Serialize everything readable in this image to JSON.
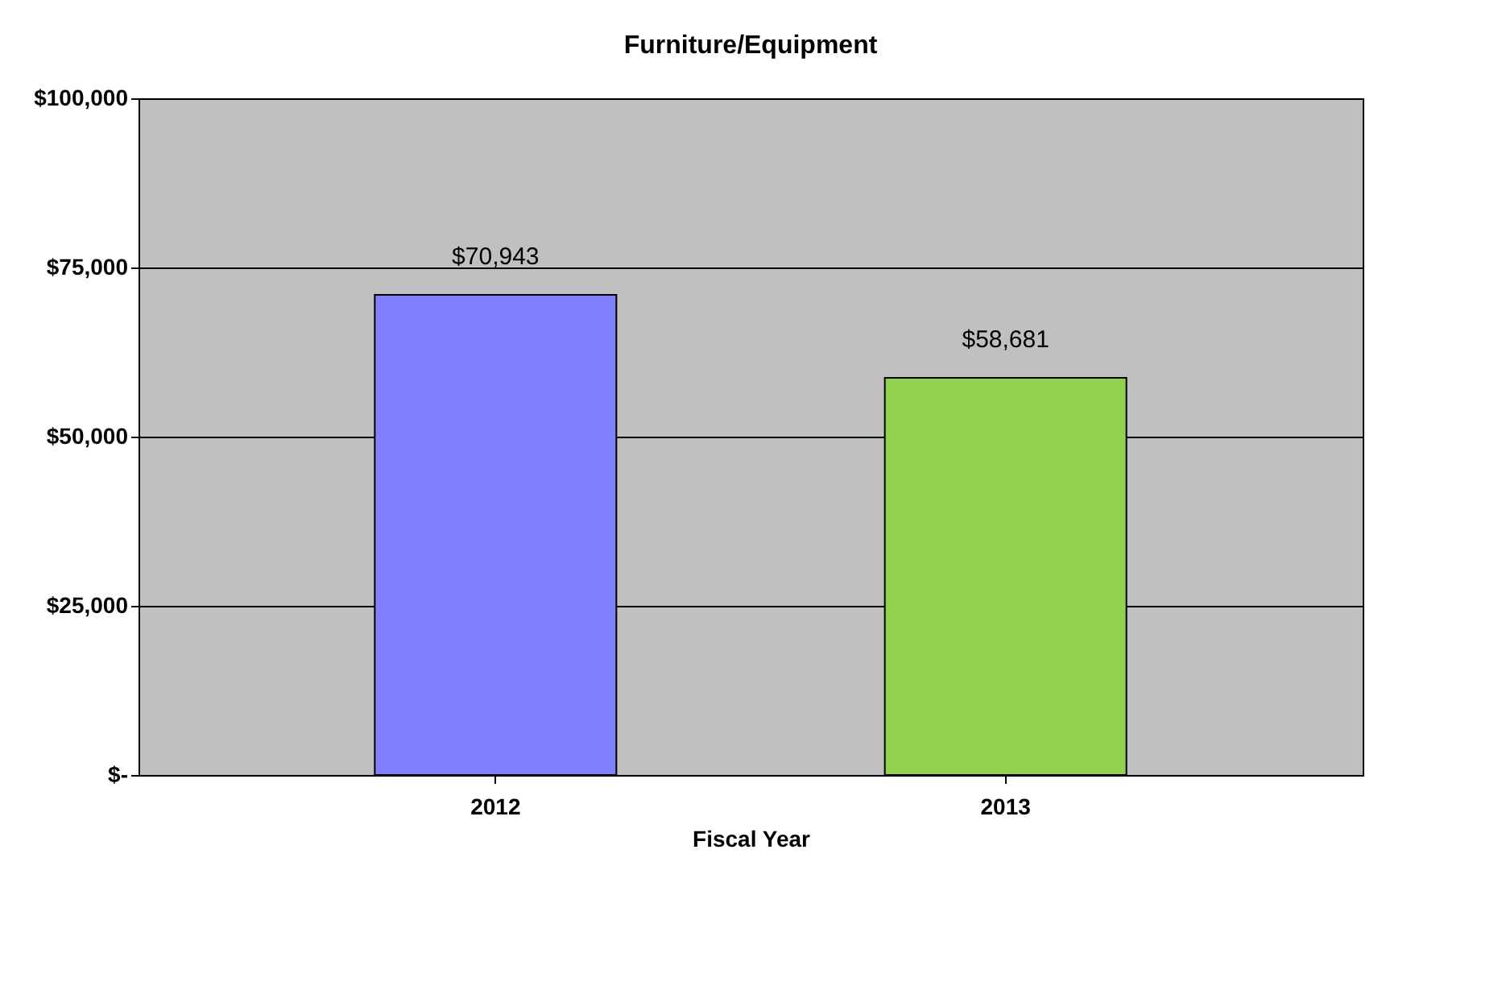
{
  "chart_data": {
    "type": "bar",
    "title": "Furniture/Equipment",
    "xlabel": "Fiscal Year",
    "categories": [
      "2012",
      "2013"
    ],
    "values": [
      70943,
      58681
    ],
    "colors": [
      "#8080ff",
      "#92d050"
    ],
    "value_labels": [
      "$70,943",
      "$58,681"
    ],
    "ylim": [
      0,
      100000
    ],
    "yticks": [
      {
        "value": 0,
        "label": "$-"
      },
      {
        "value": 25000,
        "label": "$25,000"
      },
      {
        "value": 50000,
        "label": "$50,000"
      },
      {
        "value": 75000,
        "label": "$75,000"
      },
      {
        "value": 100000,
        "label": "$100,000"
      }
    ],
    "grid": "y"
  }
}
